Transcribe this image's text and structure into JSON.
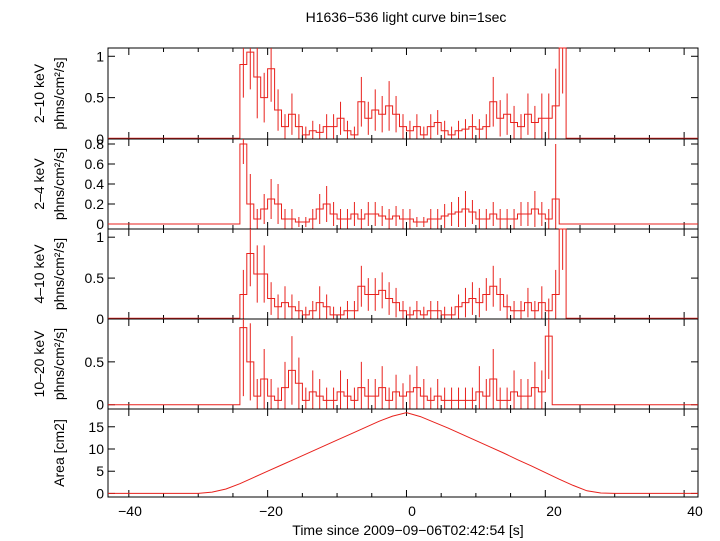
{
  "title": "H1636−536 light curve bin=1sec",
  "xlabel": "Time since 2009−09−06T02:42:54 [s]",
  "x_ticks": [
    "−40",
    "−20",
    "0",
    "20",
    "40"
  ],
  "colors": {
    "trace": "#e8211c",
    "axes": "#000000"
  },
  "chart_data": [
    {
      "type": "line",
      "name_label": "2–10 keV",
      "unit_label": "phns/cm²/s]",
      "xlim": [
        -43,
        42
      ],
      "ylim": [
        0,
        1.1
      ],
      "y_ticks": [
        0,
        0.5,
        1
      ],
      "y_tick_labels": [
        "0",
        "0.5",
        "1"
      ],
      "x": [
        -42.5,
        -41.5,
        -40.5,
        -39.5,
        -38.5,
        -37.5,
        -36.5,
        -35.5,
        -34.5,
        -33.5,
        -32.5,
        -31.5,
        -30.5,
        -29.5,
        -28.5,
        -27.5,
        -26.5,
        -25.5,
        -24.5,
        -23.5,
        -22.5,
        -21.5,
        -20.5,
        -19.5,
        -18.5,
        -17.5,
        -16.5,
        -15.5,
        -14.5,
        -13.5,
        -12.5,
        -11.5,
        -10.5,
        -9.5,
        -8.5,
        -7.5,
        -6.5,
        -5.5,
        -4.5,
        -3.5,
        -2.5,
        -1.5,
        -0.5,
        0.5,
        1.5,
        2.5,
        3.5,
        4.5,
        5.5,
        6.5,
        7.5,
        8.5,
        9.5,
        10.5,
        11.5,
        12.5,
        13.5,
        14.5,
        15.5,
        16.5,
        17.5,
        18.5,
        19.5,
        20.5,
        21.5,
        22.5,
        23.5,
        24.5,
        25.5,
        26.5,
        27.5,
        28.5,
        29.5,
        30.5,
        31.5,
        32.5,
        33.5,
        34.5,
        35.5,
        36.5,
        37.5,
        38.5,
        39.5,
        40.5,
        41.5
      ],
      "y": [
        0.01,
        0.01,
        0.01,
        0.01,
        0.01,
        0.01,
        0.01,
        0.01,
        0.01,
        0.01,
        0.01,
        0.01,
        0.01,
        0.01,
        0.01,
        0.01,
        0.01,
        0.01,
        0.01,
        0.9,
        1.05,
        0.75,
        0.5,
        0.85,
        0.35,
        0.15,
        0.3,
        0.15,
        0.05,
        0.1,
        0.08,
        0.15,
        0.15,
        0.25,
        0.1,
        0.05,
        0.45,
        0.25,
        0.35,
        0.3,
        0.4,
        0.3,
        0.15,
        0.1,
        0.15,
        0.05,
        0.15,
        0.2,
        0.1,
        0.05,
        0.1,
        0.12,
        0.15,
        0.12,
        0.15,
        0.45,
        0.25,
        0.3,
        0.2,
        0.15,
        0.3,
        0.2,
        0.25,
        0.25,
        0.4,
        1.15,
        0.01,
        0.01,
        0.01,
        0.01,
        0.01,
        0.01,
        0.01,
        0.01,
        0.01,
        0.01,
        0.01,
        0.01,
        0.01,
        0.01,
        0.01,
        0.01,
        0.01,
        0.01,
        0.01
      ],
      "err": [
        0,
        0,
        0,
        0,
        0,
        0,
        0,
        0,
        0,
        0,
        0,
        0,
        0,
        0,
        0,
        0,
        0,
        0,
        0,
        0.4,
        0.45,
        0.5,
        0.3,
        0.4,
        0.25,
        0.15,
        0.25,
        0.15,
        0.1,
        0.12,
        0.1,
        0.15,
        0.15,
        0.2,
        0.12,
        0.1,
        0.3,
        0.2,
        0.25,
        0.22,
        0.3,
        0.22,
        0.15,
        0.12,
        0.15,
        0.1,
        0.15,
        0.15,
        0.12,
        0.1,
        0.12,
        0.12,
        0.15,
        0.12,
        0.15,
        0.3,
        0.22,
        0.25,
        0.2,
        0.15,
        0.25,
        0.2,
        0.3,
        0.3,
        0.45,
        0.6,
        0,
        0,
        0,
        0,
        0,
        0,
        0,
        0,
        0,
        0,
        0,
        0,
        0,
        0,
        0,
        0,
        0,
        0,
        0
      ]
    },
    {
      "type": "line",
      "name_label": "2–4 keV",
      "unit_label": "phns/cm²/s]",
      "xlim": [
        -43,
        42
      ],
      "ylim": [
        -0.05,
        0.85
      ],
      "y_ticks": [
        0,
        0.2,
        0.4,
        0.6,
        0.8
      ],
      "y_tick_labels": [
        "0",
        "0.2",
        "0.4",
        "0.6",
        "0.8"
      ],
      "x": [
        -42.5,
        -41.5,
        -40.5,
        -39.5,
        -38.5,
        -37.5,
        -36.5,
        -35.5,
        -34.5,
        -33.5,
        -32.5,
        -31.5,
        -30.5,
        -29.5,
        -28.5,
        -27.5,
        -26.5,
        -25.5,
        -24.5,
        -23.5,
        -22.5,
        -21.5,
        -20.5,
        -19.5,
        -18.5,
        -17.5,
        -16.5,
        -15.5,
        -14.5,
        -13.5,
        -12.5,
        -11.5,
        -10.5,
        -9.5,
        -8.5,
        -7.5,
        -6.5,
        -5.5,
        -4.5,
        -3.5,
        -2.5,
        -1.5,
        -0.5,
        0.5,
        1.5,
        2.5,
        3.5,
        4.5,
        5.5,
        6.5,
        7.5,
        8.5,
        9.5,
        10.5,
        11.5,
        12.5,
        13.5,
        14.5,
        15.5,
        16.5,
        17.5,
        18.5,
        19.5,
        20.5,
        21.5,
        22.5,
        23.5,
        24.5,
        25.5,
        26.5,
        27.5,
        28.5,
        29.5,
        30.5,
        31.5,
        32.5,
        33.5,
        34.5,
        35.5,
        36.5,
        37.5,
        38.5,
        39.5,
        40.5,
        41.5
      ],
      "y": [
        0,
        0,
        0,
        0,
        0,
        0,
        0,
        0,
        0,
        0,
        0,
        0,
        0,
        0,
        0,
        0,
        0,
        0,
        0,
        0.8,
        0.2,
        0.05,
        0.15,
        0.25,
        0.2,
        0.05,
        0.05,
        0.02,
        0.02,
        0.05,
        0.15,
        0.2,
        0.1,
        0.05,
        0.05,
        0.1,
        0.05,
        0.1,
        0.1,
        0.08,
        0.05,
        0.08,
        0.05,
        0.05,
        0.02,
        0.02,
        0.05,
        0.05,
        0.08,
        0.1,
        0.12,
        0.15,
        0.12,
        0.05,
        0.05,
        0.1,
        0.05,
        0.05,
        0.05,
        0.1,
        0.1,
        0.15,
        0.1,
        0.05,
        0.25,
        0,
        0,
        0,
        0,
        0,
        0,
        0,
        0,
        0,
        0,
        0,
        0,
        0,
        0,
        0,
        0,
        0,
        0,
        0,
        0
      ],
      "err": [
        0,
        0,
        0,
        0,
        0,
        0,
        0,
        0,
        0,
        0,
        0,
        0,
        0,
        0,
        0,
        0,
        0,
        0,
        0,
        0.2,
        0.3,
        0.1,
        0.15,
        0.2,
        0.2,
        0.1,
        0.1,
        0.05,
        0.05,
        0.1,
        0.15,
        0.18,
        0.12,
        0.1,
        0.1,
        0.12,
        0.1,
        0.12,
        0.12,
        0.1,
        0.1,
        0.1,
        0.1,
        0.1,
        0.05,
        0.05,
        0.1,
        0.1,
        0.12,
        0.12,
        0.15,
        0.18,
        0.12,
        0.1,
        0.1,
        0.12,
        0.1,
        0.1,
        0.1,
        0.12,
        0.12,
        0.18,
        0.12,
        0.1,
        0.55,
        0,
        0,
        0,
        0,
        0,
        0,
        0,
        0,
        0,
        0,
        0,
        0,
        0,
        0,
        0,
        0,
        0,
        0,
        0,
        0
      ]
    },
    {
      "type": "line",
      "name_label": "4–10 keV",
      "unit_label": "phns/cm²/s]",
      "xlim": [
        -43,
        42
      ],
      "ylim": [
        0,
        1.1
      ],
      "y_ticks": [
        0,
        0.5,
        1
      ],
      "y_tick_labels": [
        "0",
        "0.5",
        "1"
      ],
      "x": [
        -42.5,
        -41.5,
        -40.5,
        -39.5,
        -38.5,
        -37.5,
        -36.5,
        -35.5,
        -34.5,
        -33.5,
        -32.5,
        -31.5,
        -30.5,
        -29.5,
        -28.5,
        -27.5,
        -26.5,
        -25.5,
        -24.5,
        -23.5,
        -22.5,
        -21.5,
        -20.5,
        -19.5,
        -18.5,
        -17.5,
        -16.5,
        -15.5,
        -14.5,
        -13.5,
        -12.5,
        -11.5,
        -10.5,
        -9.5,
        -8.5,
        -7.5,
        -6.5,
        -5.5,
        -4.5,
        -3.5,
        -2.5,
        -1.5,
        -0.5,
        0.5,
        1.5,
        2.5,
        3.5,
        4.5,
        5.5,
        6.5,
        7.5,
        8.5,
        9.5,
        10.5,
        11.5,
        12.5,
        13.5,
        14.5,
        15.5,
        16.5,
        17.5,
        18.5,
        19.5,
        20.5,
        21.5,
        22.5,
        23.5,
        24.5,
        25.5,
        26.5,
        27.5,
        28.5,
        29.5,
        30.5,
        31.5,
        32.5,
        33.5,
        34.5,
        35.5,
        36.5,
        37.5,
        38.5,
        39.5,
        40.5,
        41.5
      ],
      "y": [
        0.01,
        0.01,
        0.01,
        0.01,
        0.01,
        0.01,
        0.01,
        0.01,
        0.01,
        0.01,
        0.01,
        0.01,
        0.01,
        0.01,
        0.01,
        0.01,
        0.01,
        0.01,
        0.01,
        0.3,
        0.8,
        0.55,
        0.55,
        0.25,
        0.15,
        0.2,
        0.15,
        0.1,
        0.05,
        0.1,
        0.2,
        0.15,
        0.05,
        0.05,
        0.1,
        0.1,
        0.4,
        0.3,
        0.3,
        0.35,
        0.25,
        0.2,
        0.1,
        0.05,
        0.1,
        0.05,
        0.1,
        0.1,
        0.05,
        0.05,
        0.15,
        0.2,
        0.25,
        0.2,
        0.3,
        0.4,
        0.3,
        0.15,
        0.1,
        0.1,
        0.2,
        0.1,
        0.2,
        0.1,
        0.3,
        1.1,
        0.01,
        0.01,
        0.01,
        0.01,
        0.01,
        0.01,
        0.01,
        0.01,
        0.01,
        0.01,
        0.01,
        0.01,
        0.01,
        0.01,
        0.01,
        0.01,
        0.01,
        0.01,
        0.01
      ],
      "err": [
        0,
        0,
        0,
        0,
        0,
        0,
        0,
        0,
        0,
        0,
        0,
        0,
        0,
        0,
        0,
        0,
        0,
        0,
        0,
        0.3,
        0.4,
        0.35,
        0.35,
        0.2,
        0.15,
        0.2,
        0.15,
        0.12,
        0.1,
        0.12,
        0.2,
        0.15,
        0.1,
        0.1,
        0.12,
        0.12,
        0.25,
        0.2,
        0.2,
        0.22,
        0.2,
        0.18,
        0.12,
        0.1,
        0.12,
        0.1,
        0.12,
        0.12,
        0.1,
        0.1,
        0.15,
        0.18,
        0.2,
        0.18,
        0.2,
        0.25,
        0.2,
        0.15,
        0.12,
        0.12,
        0.18,
        0.12,
        0.2,
        0.15,
        0.3,
        0.5,
        0,
        0,
        0,
        0,
        0,
        0,
        0,
        0,
        0,
        0,
        0,
        0,
        0,
        0,
        0,
        0,
        0,
        0,
        0
      ]
    },
    {
      "type": "line",
      "name_label": "10–20 keV",
      "unit_label": "phns/cm²/s]",
      "xlim": [
        -43,
        42
      ],
      "ylim": [
        -0.05,
        1.0
      ],
      "y_ticks": [
        0,
        0.5
      ],
      "y_tick_labels": [
        "0",
        "0.5"
      ],
      "x": [
        -42.5,
        -41.5,
        -40.5,
        -39.5,
        -38.5,
        -37.5,
        -36.5,
        -35.5,
        -34.5,
        -33.5,
        -32.5,
        -31.5,
        -30.5,
        -29.5,
        -28.5,
        -27.5,
        -26.5,
        -25.5,
        -24.5,
        -23.5,
        -22.5,
        -21.5,
        -20.5,
        -19.5,
        -18.5,
        -17.5,
        -16.5,
        -15.5,
        -14.5,
        -13.5,
        -12.5,
        -11.5,
        -10.5,
        -9.5,
        -8.5,
        -7.5,
        -6.5,
        -5.5,
        -4.5,
        -3.5,
        -2.5,
        -1.5,
        -0.5,
        0.5,
        1.5,
        2.5,
        3.5,
        4.5,
        5.5,
        6.5,
        7.5,
        8.5,
        9.5,
        10.5,
        11.5,
        12.5,
        13.5,
        14.5,
        15.5,
        16.5,
        17.5,
        18.5,
        19.5,
        20.5,
        21.5,
        22.5,
        23.5,
        24.5,
        25.5,
        26.5,
        27.5,
        28.5,
        29.5,
        30.5,
        31.5,
        32.5,
        33.5,
        34.5,
        35.5,
        36.5,
        37.5,
        38.5,
        39.5,
        40.5,
        41.5
      ],
      "y": [
        0,
        0,
        0,
        0,
        0,
        0,
        0,
        0,
        0,
        0,
        0,
        0,
        0,
        0,
        0,
        0,
        0,
        0,
        0,
        0.9,
        0.5,
        0.1,
        0.3,
        0.1,
        0.05,
        0.2,
        0.4,
        0.25,
        0.05,
        0.15,
        0.1,
        0.05,
        0.05,
        0.15,
        0.1,
        0.05,
        0.2,
        0.1,
        0.1,
        0.2,
        0.05,
        0.15,
        0.1,
        0.15,
        0.2,
        0.1,
        0.05,
        0.1,
        0.05,
        0.05,
        0.05,
        0.05,
        0.05,
        0.15,
        0.1,
        0.3,
        0.05,
        0.05,
        0.15,
        0.1,
        0.1,
        0.2,
        0.15,
        0.8,
        0,
        0,
        0,
        0,
        0,
        0,
        0,
        0,
        0,
        0,
        0,
        0,
        0,
        0,
        0,
        0,
        0,
        0,
        0,
        0,
        0
      ],
      "err": [
        0,
        0,
        0,
        0,
        0,
        0,
        0,
        0,
        0,
        0,
        0,
        0,
        0,
        0,
        0,
        0,
        0,
        0,
        0,
        0.8,
        0.45,
        0.2,
        0.35,
        0.2,
        0.15,
        0.3,
        0.4,
        0.3,
        0.15,
        0.25,
        0.2,
        0.15,
        0.15,
        0.25,
        0.2,
        0.15,
        0.3,
        0.2,
        0.2,
        0.25,
        0.15,
        0.2,
        0.15,
        0.2,
        0.25,
        0.2,
        0.15,
        0.2,
        0.15,
        0.15,
        0.15,
        0.15,
        0.15,
        0.3,
        0.2,
        0.35,
        0.15,
        0.15,
        0.25,
        0.2,
        0.2,
        0.3,
        0.25,
        0.5,
        0,
        0,
        0,
        0,
        0,
        0,
        0,
        0,
        0,
        0,
        0,
        0,
        0,
        0,
        0,
        0,
        0,
        0,
        0,
        0,
        0
      ]
    },
    {
      "type": "line",
      "name_label": "Area [cm2]",
      "unit_label": "",
      "xlim": [
        -43,
        42
      ],
      "ylim": [
        -0.8,
        19
      ],
      "y_ticks": [
        0,
        5,
        10,
        15
      ],
      "y_tick_labels": [
        "0",
        "5",
        "10",
        "15"
      ],
      "x": [
        -43,
        -30,
        -28,
        -26,
        -24,
        -22,
        -20,
        -18,
        -16,
        -14,
        -12,
        -10,
        -8,
        -6,
        -4,
        -2,
        0,
        2,
        4,
        6,
        8,
        10,
        12,
        14,
        16,
        18,
        20,
        22,
        24,
        26,
        28,
        30,
        42
      ],
      "y": [
        0,
        0,
        0.3,
        1.0,
        2.2,
        3.6,
        5.0,
        6.4,
        7.8,
        9.2,
        10.6,
        12.0,
        13.4,
        14.8,
        16.2,
        17.4,
        18.2,
        17.3,
        16.0,
        14.7,
        13.3,
        11.9,
        10.5,
        9.1,
        7.6,
        6.2,
        4.7,
        3.2,
        1.8,
        0.6,
        0.1,
        0,
        0
      ]
    }
  ]
}
